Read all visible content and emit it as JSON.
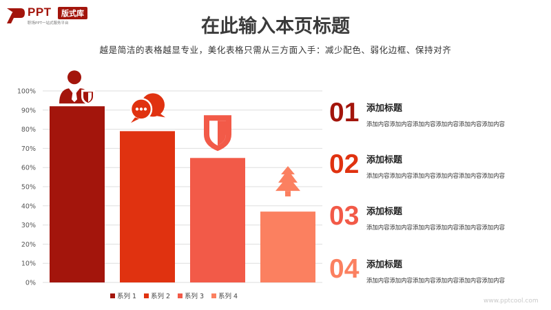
{
  "logo": {
    "brand": "PPT",
    "badge": "版式库",
    "tagline": "职场PPT一站式服务平台"
  },
  "title": "在此输入本页标题",
  "subtitle": "越是简洁的表格越显专业，美化表格只需从三方面入手：减少配色、弱化边框、保持对齐",
  "chart_data": {
    "type": "bar",
    "title": "",
    "xlabel": "",
    "ylabel": "",
    "ylim": [
      0,
      1
    ],
    "yticks": [
      "0%",
      "10%",
      "20%",
      "30%",
      "40%",
      "50%",
      "60%",
      "70%",
      "80%",
      "90%",
      "100%"
    ],
    "grid": true,
    "legend_position": "bottom",
    "series": [
      {
        "name": "系列 1",
        "value": 0.92,
        "color": "#a3150c",
        "icon": "businessman-shield-icon"
      },
      {
        "name": "系列 2",
        "value": 0.79,
        "color": "#e03210",
        "icon": "chat-bubbles-icon"
      },
      {
        "name": "系列 3",
        "value": 0.65,
        "color": "#f25a48",
        "icon": "shield-icon"
      },
      {
        "name": "系列 4",
        "value": 0.37,
        "color": "#fb8060",
        "icon": "tree-icon"
      }
    ]
  },
  "items": [
    {
      "number": "01",
      "title": "添加标题",
      "desc": "添加内容添加内容添加内容添加内容添加内容添加内容",
      "color": "#a3150c"
    },
    {
      "number": "02",
      "title": "添加标题",
      "desc": "添加内容添加内容添加内容添加内容添加内容添加内容",
      "color": "#e03210"
    },
    {
      "number": "03",
      "title": "添加标题",
      "desc": "添加内容添加内容添加内容添加内容添加内容添加内容",
      "color": "#f25a48"
    },
    {
      "number": "04",
      "title": "添加标题",
      "desc": "添加内容添加内容添加内容添加内容添加内容添加内容",
      "color": "#fb8060"
    }
  ],
  "watermark": "www.pptcool.com"
}
